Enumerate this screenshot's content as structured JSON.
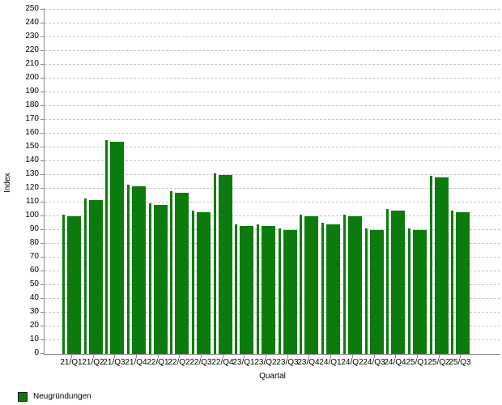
{
  "chart_data": {
    "type": "bar",
    "title": "",
    "categories": [
      "21/Q1",
      "21/Q2",
      "21/Q3",
      "21/Q4",
      "22/Q1",
      "22/Q2",
      "22/Q3",
      "22/Q4",
      "23/Q1",
      "23/Q2",
      "23/Q3",
      "23/Q4",
      "24/Q1",
      "24/Q2",
      "24/Q3",
      "24/Q4",
      "25/Q1",
      "25/Q2",
      "25/Q3"
    ],
    "series": [
      {
        "name": "Neugründungen",
        "color": "#0b7c0b",
        "values": [
          100,
          112,
          154,
          122,
          108,
          117,
          103,
          130,
          93,
          93,
          90,
          100,
          94,
          100,
          90,
          104,
          90,
          128,
          103
        ]
      }
    ],
    "xlabel": "Quartal",
    "ylabel": "Index",
    "ylim": [
      0,
      250
    ],
    "ytick_step": 10,
    "grid": true,
    "gridline_color": "#c9c9c9",
    "axis_color": "#8a8a8a",
    "legend_position": "bottom-left"
  },
  "legend": {
    "items": [
      {
        "label": "Neugründungen",
        "color": "#0b7c0b"
      }
    ]
  }
}
